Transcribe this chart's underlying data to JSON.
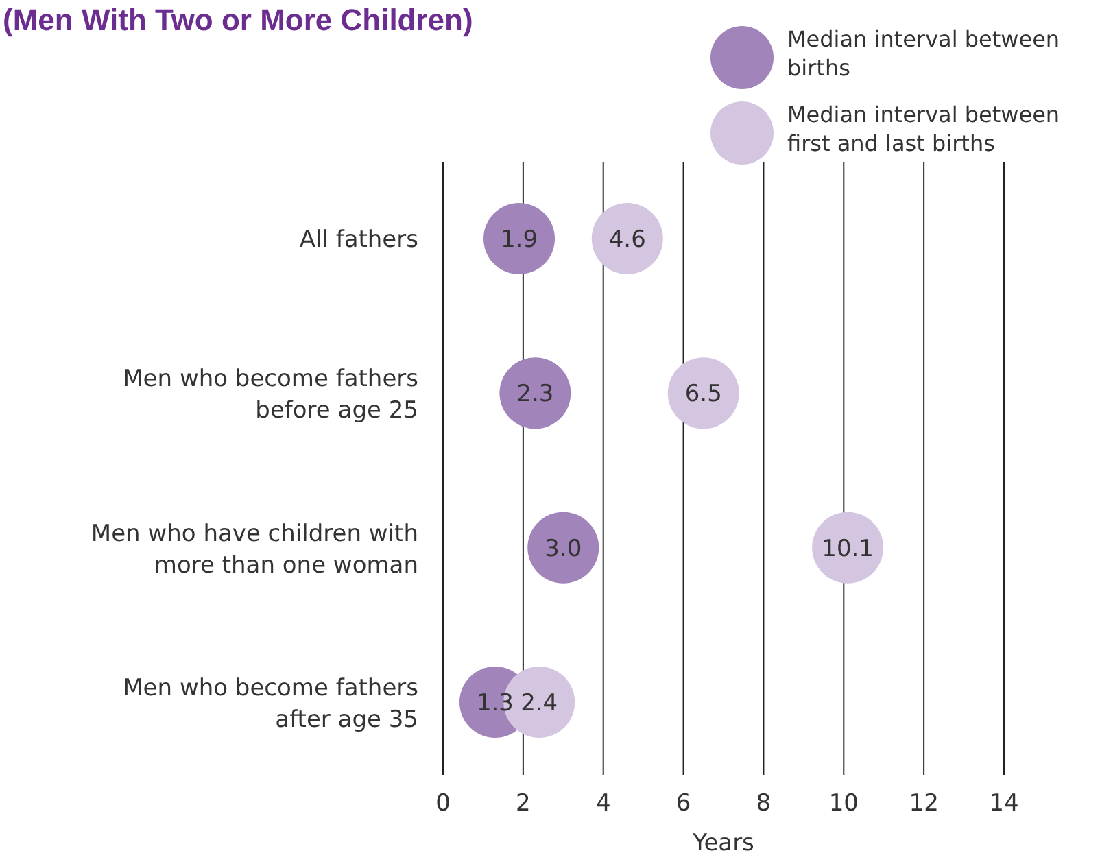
{
  "chart_data": {
    "type": "scatter",
    "title": "(Men With Two or More Children)",
    "orientation": "horizontal",
    "categories": [
      "All fathers",
      "Men who become fathers before age 25",
      "Men who have children with more than one woman",
      "Men who become fathers after age 35"
    ],
    "series": [
      {
        "name": "Median interval between births",
        "color": "#a084ba",
        "values": [
          1.9,
          2.3,
          3.0,
          1.3
        ],
        "value_labels": [
          "1.9",
          "2.3",
          "3.0",
          "1.3"
        ]
      },
      {
        "name": "Median interval between first and last births",
        "color": "#d4c6e0",
        "values": [
          4.6,
          6.5,
          10.1,
          2.4
        ],
        "value_labels": [
          "4.6",
          "6.5",
          "10.1",
          "2.4"
        ]
      }
    ],
    "xlabel": "Years",
    "xlim": [
      0,
      14
    ],
    "xticks": [
      0,
      2,
      4,
      6,
      8,
      10,
      12,
      14
    ],
    "grid": "x",
    "legend": "top right",
    "marker": "circle"
  }
}
